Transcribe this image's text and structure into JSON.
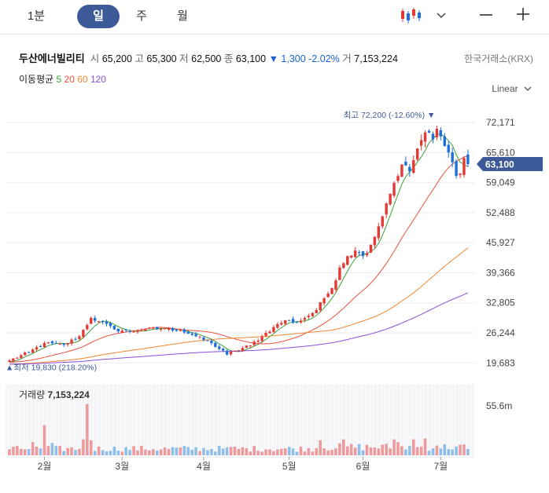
{
  "tabs": [
    {
      "label": "1분",
      "active": false
    },
    {
      "label": "일",
      "active": true
    },
    {
      "label": "주",
      "active": false
    },
    {
      "label": "월",
      "active": false
    }
  ],
  "stock": {
    "name": "두산에너빌리티",
    "open_label": "시",
    "open": "65,200",
    "high_label": "고",
    "high": "65,300",
    "low_label": "저",
    "low": "62,500",
    "close_label": "종",
    "close": "63,100",
    "change_arrow": "▼",
    "change": "1,300",
    "change_pct": "-2.02%",
    "volume_label": "거",
    "volume": "7,153,224",
    "exchange": "한국거래소(KRX)"
  },
  "ma_legend": {
    "label": "이동평균",
    "items": [
      {
        "label": "5",
        "color": "#3aa13a"
      },
      {
        "label": "20",
        "color": "#e8513f"
      },
      {
        "label": "60",
        "color": "#f0872e"
      },
      {
        "label": "120",
        "color": "#8a4fd8"
      }
    ]
  },
  "scale_mode": "Linear",
  "colors": {
    "up": "#e53935",
    "down": "#1e6fd9",
    "vol_up": "#ee9a9c",
    "vol_down": "#8fbfe8",
    "badge": "#3d5a98"
  },
  "chart_data": {
    "type": "candlestick",
    "y_ticks": [
      "72,171",
      "65,610",
      "59,049",
      "52,488",
      "45,927",
      "39,366",
      "32,805",
      "26,244",
      "19,683"
    ],
    "y_tick_values": [
      72171,
      65610,
      59049,
      52488,
      45927,
      39366,
      32805,
      26244,
      19683
    ],
    "ylim": [
      17500,
      77500
    ],
    "x_labels": [
      "2월",
      "3월",
      "4월",
      "5월",
      "6월",
      "7월"
    ],
    "x_label_index": [
      9,
      29,
      50,
      72,
      91,
      111
    ],
    "n_days": 119,
    "current_price": "63,100",
    "max_annotation": {
      "label": "최고",
      "value": "72,200",
      "pct": "(-12.60%)",
      "index": 110,
      "price": 72200
    },
    "min_annotation": {
      "label": "최저",
      "value": "19,830",
      "pct": "(218.20%)",
      "index": 0,
      "price": 19830
    },
    "close_anchors": [
      [
        0,
        20200
      ],
      [
        5,
        22000
      ],
      [
        9,
        24000
      ],
      [
        14,
        23600
      ],
      [
        18,
        25500
      ],
      [
        21,
        29500
      ],
      [
        23,
        28800
      ],
      [
        27,
        27000
      ],
      [
        31,
        26500
      ],
      [
        35,
        27000
      ],
      [
        40,
        27200
      ],
      [
        44,
        26800
      ],
      [
        48,
        25500
      ],
      [
        52,
        24000
      ],
      [
        56,
        21500
      ],
      [
        58,
        22300
      ],
      [
        62,
        23500
      ],
      [
        65,
        25500
      ],
      [
        68,
        27500
      ],
      [
        71,
        29000
      ],
      [
        74,
        28500
      ],
      [
        76,
        29500
      ],
      [
        79,
        31200
      ],
      [
        81,
        33800
      ],
      [
        83,
        36000
      ],
      [
        85,
        40500
      ],
      [
        87,
        43000
      ],
      [
        89,
        44200
      ],
      [
        91,
        43000
      ],
      [
        93,
        45500
      ],
      [
        95,
        49500
      ],
      [
        97,
        54500
      ],
      [
        99,
        59000
      ],
      [
        101,
        63000
      ],
      [
        103,
        61500
      ],
      [
        105,
        66500
      ],
      [
        107,
        70000
      ],
      [
        109,
        68500
      ],
      [
        110,
        70800
      ],
      [
        112,
        67000
      ],
      [
        114,
        63500
      ],
      [
        115,
        60500
      ],
      [
        116,
        61000
      ],
      [
        117,
        64400
      ],
      [
        118,
        63100
      ]
    ],
    "volume": {
      "label": "거래량",
      "latest": "7,153,224",
      "axis_label": "55.6m",
      "axis_value": 55600000,
      "spikes": [
        [
          6,
          15000000
        ],
        [
          9,
          34000000
        ],
        [
          11,
          14000000
        ],
        [
          19,
          18000000
        ],
        [
          20,
          58000000
        ],
        [
          21,
          17000000
        ],
        [
          56,
          9000000
        ],
        [
          80,
          17000000
        ],
        [
          86,
          18000000
        ],
        [
          99,
          18000000
        ],
        [
          100,
          15000000
        ],
        [
          104,
          18000000
        ],
        [
          107,
          19000000
        ],
        [
          110,
          11000000
        ]
      ]
    }
  }
}
